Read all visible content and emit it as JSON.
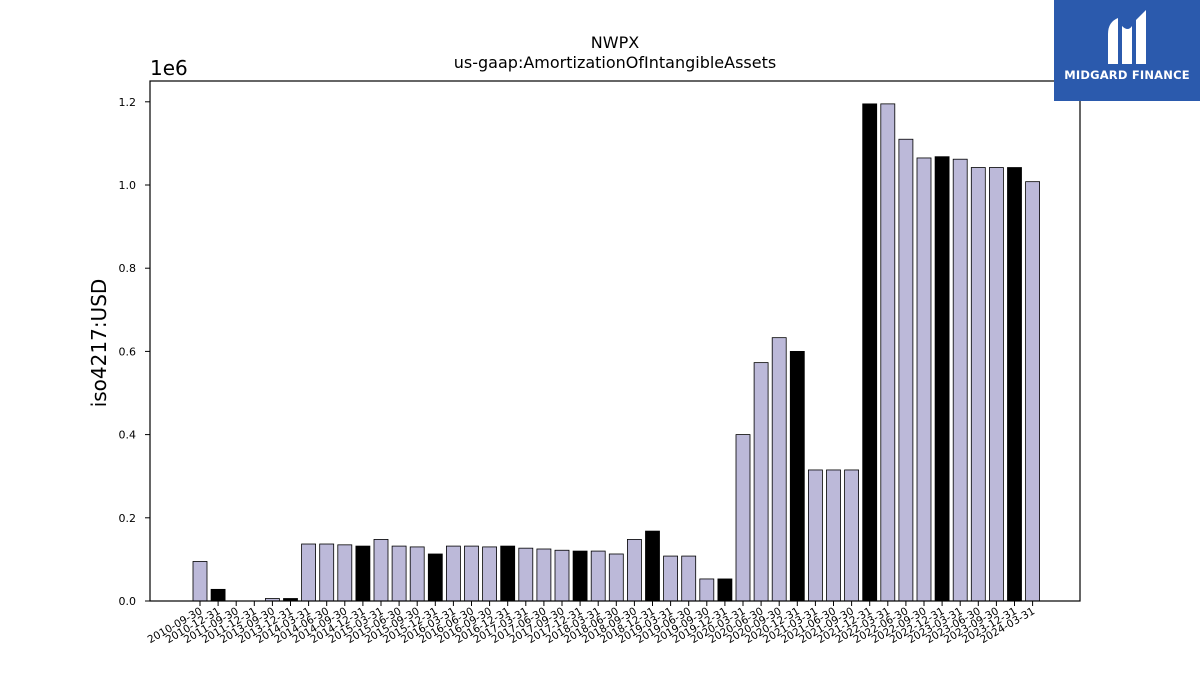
{
  "brand": {
    "name": "MIDGARD FINANCE"
  },
  "chart_data": {
    "type": "bar",
    "title": "NWPX",
    "subtitle": "us-gaap:AmortizationOfIntangibleAssets",
    "xlabel": "",
    "ylabel": "iso4217:USD",
    "y_multiplier_label": "1e6",
    "y_scale": 1000000,
    "ylim": [
      0,
      1250000
    ],
    "yticks": [
      0,
      200000,
      400000,
      600000,
      800000,
      1000000,
      1200000
    ],
    "ytick_labels": [
      "0.0",
      "0.2",
      "0.4",
      "0.6",
      "0.8",
      "1.0",
      "1.2"
    ],
    "grid": false,
    "colors": {
      "default": "#bcb9d9",
      "highlight": "#000000",
      "edge": "#000000"
    },
    "categories": [
      "2010-09-30",
      "2010-12-31",
      "2011-09-30",
      "2011-12-31",
      "2013-09-30",
      "2013-12-31",
      "2014-03-31",
      "2014-06-30",
      "2014-09-30",
      "2014-12-31",
      "2015-03-31",
      "2015-06-30",
      "2015-09-30",
      "2015-12-31",
      "2016-03-31",
      "2016-06-30",
      "2016-09-30",
      "2016-12-31",
      "2017-03-31",
      "2017-06-30",
      "2017-09-30",
      "2017-12-31",
      "2018-03-31",
      "2018-06-30",
      "2018-09-30",
      "2018-12-31",
      "2019-03-31",
      "2019-06-30",
      "2019-09-30",
      "2019-12-31",
      "2020-03-31",
      "2020-06-30",
      "2020-09-30",
      "2020-12-31",
      "2021-03-31",
      "2021-06-30",
      "2021-09-30",
      "2021-12-31",
      "2022-03-31",
      "2022-06-30",
      "2022-09-30",
      "2022-12-31",
      "2023-03-31",
      "2023-06-30",
      "2023-09-30",
      "2023-12-31",
      "2024-03-31"
    ],
    "values": [
      95000,
      28000,
      0,
      0,
      6000,
      6000,
      137000,
      137000,
      135000,
      132000,
      148000,
      132000,
      130000,
      113000,
      132000,
      132000,
      130000,
      132000,
      127000,
      125000,
      122000,
      120000,
      120000,
      113000,
      148000,
      168000,
      108000,
      108000,
      53000,
      53000,
      400000,
      573000,
      633000,
      600000,
      315000,
      315000,
      315000,
      1195000,
      1195000,
      1110000,
      1065000,
      1068000,
      1062000,
      1042000,
      1042000,
      1042000,
      1008000
    ],
    "highlight": [
      false,
      true,
      false,
      true,
      false,
      true,
      false,
      false,
      false,
      true,
      false,
      false,
      false,
      true,
      false,
      false,
      false,
      true,
      false,
      false,
      false,
      true,
      false,
      false,
      false,
      true,
      false,
      false,
      false,
      true,
      false,
      false,
      false,
      true,
      false,
      false,
      false,
      true,
      false,
      false,
      false,
      true,
      false,
      false,
      false,
      true,
      false
    ]
  }
}
